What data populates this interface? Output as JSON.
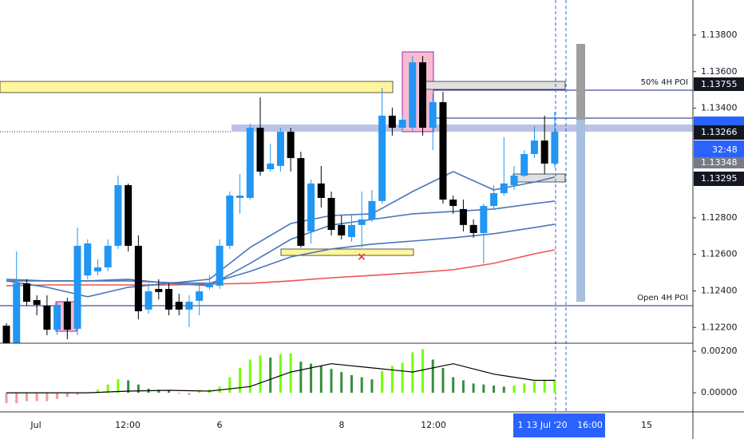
{
  "chart_data": {
    "type": "candlestick",
    "ylim": [
      1.12114,
      1.13992
    ],
    "yticks": [
      {
        "value": 1.122,
        "label": "1.12200"
      },
      {
        "value": 1.124,
        "label": "1.12400"
      },
      {
        "value": 1.126,
        "label": "1.12600"
      },
      {
        "value": 1.128,
        "label": "1.12800"
      },
      {
        "value": 1.134,
        "label": "1.13400"
      },
      {
        "value": 1.136,
        "label": "1.13600"
      },
      {
        "value": 1.138,
        "label": "1.13800"
      }
    ],
    "up_color": "#2196f3",
    "down_color": "#000000",
    "ohlc": [
      [
        1.1221,
        1.12223,
        1.12114,
        1.12114
      ],
      [
        1.12114,
        1.12616,
        1.12114,
        1.12442
      ],
      [
        1.12442,
        1.12464,
        1.12319,
        1.12341
      ],
      [
        1.1235,
        1.12376,
        1.12267,
        1.12324
      ],
      [
        1.12319,
        1.12376,
        1.12158,
        1.12188
      ],
      [
        1.12188,
        1.12341,
        1.12158,
        1.12324
      ],
      [
        1.12341,
        1.12363,
        1.12136,
        1.12188
      ],
      [
        1.12193,
        1.12747,
        1.12158,
        1.12647
      ],
      [
        1.12485,
        1.12682,
        1.12464,
        1.1266
      ],
      [
        1.12507,
        1.12573,
        1.12485,
        1.12529
      ],
      [
        1.12529,
        1.12682,
        1.12507,
        1.12647
      ],
      [
        1.12647,
        1.13031,
        1.1263,
        1.12979
      ],
      [
        1.12979,
        1.12988,
        1.12616,
        1.12647
      ],
      [
        1.12647,
        1.12704,
        1.12245,
        1.12289
      ],
      [
        1.12298,
        1.12442,
        1.12276,
        1.12398
      ],
      [
        1.12411,
        1.12464,
        1.12354,
        1.12394
      ],
      [
        1.12411,
        1.12442,
        1.12267,
        1.12298
      ],
      [
        1.12341,
        1.12385,
        1.12267,
        1.12298
      ],
      [
        1.12298,
        1.12376,
        1.12202,
        1.12341
      ],
      [
        1.12346,
        1.12442,
        1.12267,
        1.12398
      ],
      [
        1.1242,
        1.12485,
        1.12407,
        1.12442
      ],
      [
        1.12429,
        1.12682,
        1.12411,
        1.12647
      ],
      [
        1.12647,
        1.12944,
        1.1263,
        1.12922
      ],
      [
        1.12909,
        1.1304,
        1.12822,
        1.12922
      ],
      [
        1.12909,
        1.13315,
        1.129,
        1.13293
      ],
      [
        1.13293,
        1.13459,
        1.13031,
        1.13053
      ],
      [
        1.13066,
        1.13206,
        1.13053,
        1.13097
      ],
      [
        1.13084,
        1.13293,
        1.13053,
        1.13271
      ],
      [
        1.13271,
        1.13293,
        1.13053,
        1.13127
      ],
      [
        1.13127,
        1.13162,
        1.12638,
        1.12647
      ],
      [
        1.12726,
        1.13009,
        1.1266,
        1.12988
      ],
      [
        1.12988,
        1.13084,
        1.12857,
        1.12909
      ],
      [
        1.12909,
        1.12944,
        1.12704,
        1.12734
      ],
      [
        1.12761,
        1.12813,
        1.12682,
        1.12704
      ],
      [
        1.12695,
        1.12813,
        1.12669,
        1.12761
      ],
      [
        1.12761,
        1.12944,
        1.12638,
        1.12791
      ],
      [
        1.12791,
        1.12953,
        1.12778,
        1.12892
      ],
      [
        1.12892,
        1.13512,
        1.12878,
        1.13359
      ],
      [
        1.13359,
        1.13403,
        1.1325,
        1.13293
      ],
      [
        1.13293,
        1.13359,
        1.13271,
        1.13337
      ],
      [
        1.13293,
        1.13686,
        1.13271,
        1.13651
      ],
      [
        1.13651,
        1.13686,
        1.1325,
        1.13293
      ],
      [
        1.13293,
        1.13477,
        1.13171,
        1.13433
      ],
      [
        1.13433,
        1.1349,
        1.12878,
        1.129
      ],
      [
        1.129,
        1.12922,
        1.12822,
        1.12865
      ],
      [
        1.12848,
        1.129,
        1.12726,
        1.12761
      ],
      [
        1.12761,
        1.12791,
        1.12691,
        1.12717
      ],
      [
        1.12717,
        1.12878,
        1.12551,
        1.12865
      ],
      [
        1.12865,
        1.12979,
        1.12848,
        1.12935
      ],
      [
        1.12935,
        1.13241,
        1.12922,
        1.12988
      ],
      [
        1.12979,
        1.13084,
        1.12953,
        1.13031
      ],
      [
        1.13031,
        1.13171,
        1.13023,
        1.13149
      ],
      [
        1.13149,
        1.13302,
        1.13127,
        1.13223
      ],
      [
        1.13223,
        1.13359,
        1.1304,
        1.13097
      ],
      [
        1.13097,
        1.13381,
        1.13075,
        1.13271
      ]
    ],
    "series": [
      {
        "color": "#ef5350",
        "x": [
          0,
          4,
          8,
          12,
          16,
          20,
          24,
          28,
          32,
          36,
          40,
          44,
          48,
          52,
          54
        ],
        "values": [
          1.12429,
          1.12433,
          1.12433,
          1.12433,
          1.12433,
          1.12437,
          1.12442,
          1.12455,
          1.12472,
          1.12485,
          1.12499,
          1.12516,
          1.12551,
          1.12603,
          1.12625
        ]
      },
      {
        "color": "#4a76b8",
        "x": [
          0,
          4,
          8,
          12,
          16,
          20,
          24,
          28,
          32,
          36,
          40,
          44,
          48,
          52,
          54
        ],
        "values": [
          1.12464,
          1.12455,
          1.12455,
          1.12455,
          1.12446,
          1.12442,
          1.12507,
          1.12586,
          1.1263,
          1.12656,
          1.12673,
          1.12691,
          1.12713,
          1.12747,
          1.12765
        ]
      },
      {
        "color": "#4a76b8",
        "x": [
          0,
          4,
          8,
          12,
          16,
          20,
          24,
          28,
          32,
          36,
          40,
          44,
          48,
          52,
          54
        ],
        "values": [
          1.12455,
          1.12455,
          1.12455,
          1.12464,
          1.12442,
          1.12429,
          1.12551,
          1.12682,
          1.12761,
          1.12791,
          1.12822,
          1.12835,
          1.12848,
          1.12878,
          1.12892
        ]
      },
      {
        "color": "#4a76b8",
        "x": [
          0,
          4,
          8,
          12,
          16,
          20,
          24,
          28,
          32,
          36,
          40,
          44,
          48,
          52,
          54
        ],
        "values": [
          1.12455,
          1.1242,
          1.12368,
          1.1242,
          1.12442,
          1.12464,
          1.12638,
          1.12769,
          1.12813,
          1.12822,
          1.12944,
          1.13053,
          1.12953,
          1.12996,
          1.13023
        ]
      }
    ],
    "annotations": [
      "50% 4H POI",
      "Open 4H POI"
    ],
    "price_labels": [
      "1.13755",
      "1.13266",
      "32:48",
      "1.13348",
      "1.13295"
    ],
    "x_labels": [
      "Jul",
      "12:00",
      "6",
      "8",
      "12:00",
      "15"
    ],
    "crosshair_labels": [
      "1",
      "13 Jul '20",
      "16:00"
    ],
    "macd": {
      "type": "bar",
      "ylim": [
        -0.00088,
        0.00231
      ],
      "yticks": [
        {
          "value": 0,
          "label": "0.00000"
        },
        {
          "value": 0.002,
          "label": "0.00200"
        }
      ],
      "rise_color": "#76ff03",
      "fall_color": "#388e3c",
      "neg_color": "#ef9a9a",
      "values": [
        -0.0005,
        -0.0005,
        -0.0004,
        -0.0004,
        -0.0004,
        -0.0003,
        -0.0002,
        -0.0001,
        0,
        0.00015,
        0.0004,
        0.00065,
        0.0006,
        0.0004,
        0.0002,
        0.00015,
        0.0001,
        -5e-05,
        -0.0001,
        0.0001,
        0.00015,
        0.0003,
        0.00075,
        0.0012,
        0.0016,
        0.0018,
        0.0017,
        0.00185,
        0.0019,
        0.0015,
        0.0014,
        0.0013,
        0.00115,
        0.001,
        0.00085,
        0.00075,
        0.00065,
        0.00105,
        0.0013,
        0.00145,
        0.00195,
        0.0021,
        0.0016,
        0.0012,
        0.00075,
        0.0006,
        0.00045,
        0.0004,
        0.00035,
        0.0003,
        0.00035,
        0.00045,
        0.00055,
        0.0006,
        0.00065
      ],
      "signal": {
        "color": "#000000",
        "x": [
          0,
          4,
          8,
          12,
          16,
          20,
          24,
          28,
          32,
          36,
          40,
          44,
          48,
          52,
          54
        ],
        "values": [
          0,
          0,
          0,
          8e-05,
          0.00012,
          8e-05,
          0.0003,
          0.001,
          0.0014,
          0.0012,
          0.001,
          0.0014,
          0.0009,
          0.0006,
          0.0006
        ]
      }
    }
  }
}
